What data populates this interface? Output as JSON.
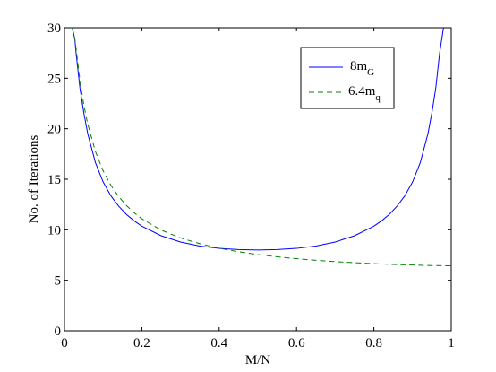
{
  "chart_data": {
    "type": "line",
    "xlabel": "M/N",
    "ylabel": "No. of Iterations",
    "xlim": [
      0,
      1
    ],
    "ylim": [
      0,
      30
    ],
    "x_ticks": [
      "0",
      "0.2",
      "0.4",
      "0.6",
      "0.8",
      "1"
    ],
    "y_ticks": [
      "0",
      "5",
      "10",
      "15",
      "20",
      "25",
      "30"
    ],
    "grid": false,
    "legend_position": "top-right",
    "series": [
      {
        "name": "8m_G",
        "legend_main": "8m",
        "legend_sub": "G",
        "color": "#0000ff",
        "dash": "solid",
        "points": [
          [
            0.02,
            30
          ],
          [
            0.0267,
            28.9
          ],
          [
            0.03,
            27.49
          ],
          [
            0.04,
            24.01
          ],
          [
            0.05,
            21.58
          ],
          [
            0.06,
            19.54
          ],
          [
            0.08,
            16.65
          ],
          [
            0.1,
            14.73
          ],
          [
            0.12,
            13.36
          ],
          [
            0.14,
            12.34
          ],
          [
            0.16,
            11.53
          ],
          [
            0.18,
            10.89
          ],
          [
            0.2,
            10.36
          ],
          [
            0.25,
            9.41
          ],
          [
            0.3,
            8.79
          ],
          [
            0.35,
            8.39
          ],
          [
            0.4,
            8.16
          ],
          [
            0.45,
            8.04
          ],
          [
            0.5,
            8.0
          ],
          [
            0.55,
            8.04
          ],
          [
            0.6,
            8.16
          ],
          [
            0.65,
            8.39
          ],
          [
            0.7,
            8.79
          ],
          [
            0.75,
            9.41
          ],
          [
            0.8,
            10.36
          ],
          [
            0.82,
            10.89
          ],
          [
            0.84,
            11.53
          ],
          [
            0.86,
            12.34
          ],
          [
            0.88,
            13.36
          ],
          [
            0.9,
            14.73
          ],
          [
            0.92,
            16.65
          ],
          [
            0.94,
            19.54
          ],
          [
            0.95,
            21.58
          ],
          [
            0.96,
            24.01
          ],
          [
            0.97,
            27.49
          ],
          [
            0.98,
            30.0
          ]
        ]
      },
      {
        "name": "6.4m_q",
        "legend_main": "6.4m",
        "legend_sub": "q",
        "color": "#008000",
        "dash": "dashed",
        "points": [
          [
            0.02,
            30
          ],
          [
            0.0267,
            28.9
          ],
          [
            0.03,
            27.96
          ],
          [
            0.04,
            24.75
          ],
          [
            0.05,
            22.36
          ],
          [
            0.06,
            20.49
          ],
          [
            0.08,
            17.75
          ],
          [
            0.1,
            15.83
          ],
          [
            0.12,
            14.4
          ],
          [
            0.14,
            13.29
          ],
          [
            0.16,
            12.41
          ],
          [
            0.18,
            11.69
          ],
          [
            0.2,
            11.09
          ],
          [
            0.25,
            9.97
          ],
          [
            0.3,
            9.19
          ],
          [
            0.35,
            8.62
          ],
          [
            0.4,
            8.17
          ],
          [
            0.45,
            7.83
          ],
          [
            0.5,
            7.55
          ],
          [
            0.55,
            7.32
          ],
          [
            0.6,
            7.14
          ],
          [
            0.65,
            6.98
          ],
          [
            0.7,
            6.85
          ],
          [
            0.75,
            6.74
          ],
          [
            0.8,
            6.65
          ],
          [
            0.85,
            6.57
          ],
          [
            0.9,
            6.51
          ],
          [
            0.95,
            6.46
          ],
          [
            1.0,
            6.43
          ]
        ]
      }
    ]
  }
}
